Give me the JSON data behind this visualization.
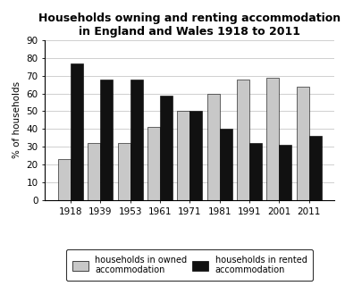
{
  "title": "Households owning and renting accommodation\nin England and Wales 1918 to 2011",
  "years": [
    "1918",
    "1939",
    "1953",
    "1961",
    "1971",
    "1981",
    "1991",
    "2001",
    "2011"
  ],
  "owned": [
    23,
    32,
    32,
    41,
    50,
    60,
    68,
    69,
    64
  ],
  "rented": [
    77,
    68,
    68,
    59,
    50,
    40,
    32,
    31,
    36
  ],
  "owned_color": "#c8c8c8",
  "rented_color": "#111111",
  "ylabel": "% of households",
  "ylim": [
    0,
    90
  ],
  "yticks": [
    0,
    10,
    20,
    30,
    40,
    50,
    60,
    70,
    80,
    90
  ],
  "legend_owned": "households in owned\naccommodation",
  "legend_rented": "households in rented\naccommodation",
  "bar_width": 0.42,
  "title_fontsize": 9,
  "axis_fontsize": 7.5,
  "legend_fontsize": 7
}
